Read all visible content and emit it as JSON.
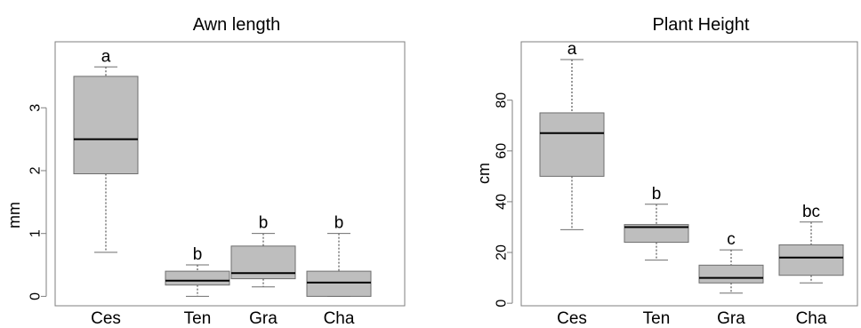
{
  "chart_data": [
    {
      "type": "box",
      "title": "Awn length",
      "ylabel": "mm",
      "ylim": [
        -0.15,
        4.05
      ],
      "yticks": [
        0,
        1,
        2,
        3
      ],
      "categories": [
        "Ces",
        "Ten",
        "Gra",
        "Cha"
      ],
      "boxes": [
        {
          "category": "Ces",
          "min": 0.7,
          "q1": 1.95,
          "median": 2.5,
          "q3": 3.5,
          "max": 3.65,
          "group_label": "a"
        },
        {
          "category": "Ten",
          "min": 0.0,
          "q1": 0.18,
          "median": 0.25,
          "q3": 0.4,
          "max": 0.5,
          "group_label": "b"
        },
        {
          "category": "Gra",
          "min": 0.15,
          "q1": 0.28,
          "median": 0.37,
          "q3": 0.8,
          "max": 1.0,
          "group_label": "b"
        },
        {
          "category": "Cha",
          "min": 0.0,
          "q1": 0.0,
          "median": 0.22,
          "q3": 0.4,
          "max": 1.0,
          "group_label": "b"
        }
      ]
    },
    {
      "type": "box",
      "title": "Plant Height",
      "ylabel": "cm",
      "ylim": [
        -1,
        103
      ],
      "yticks": [
        0,
        20,
        40,
        60,
        80
      ],
      "categories": [
        "Ces",
        "Ten",
        "Gra",
        "Cha"
      ],
      "boxes": [
        {
          "category": "Ces",
          "min": 29,
          "q1": 50,
          "median": 67,
          "q3": 75,
          "max": 96,
          "group_label": "a"
        },
        {
          "category": "Ten",
          "min": 17,
          "q1": 24,
          "median": 30,
          "q3": 31,
          "max": 39,
          "group_label": "b"
        },
        {
          "category": "Gra",
          "min": 4,
          "q1": 8,
          "median": 10,
          "q3": 15,
          "max": 21,
          "group_label": "c"
        },
        {
          "category": "Cha",
          "min": 8,
          "q1": 11,
          "median": 18,
          "q3": 23,
          "max": 32,
          "group_label": "bc"
        }
      ]
    }
  ]
}
